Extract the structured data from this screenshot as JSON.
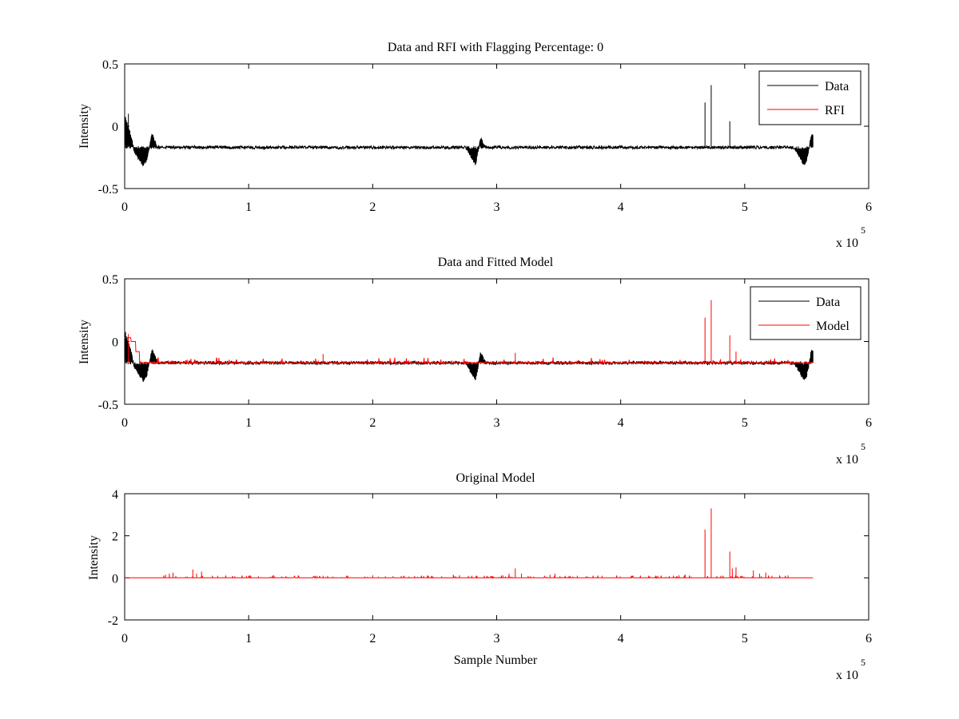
{
  "colors": {
    "data": "#000000",
    "rfi": "#ff0000",
    "model": "#ff0000",
    "axes": "#000000",
    "background": "#ffffff"
  },
  "chart_data": [
    {
      "type": "line",
      "title": "Data and RFI with Flagging Percentage: 0",
      "xlabel": "",
      "ylabel": "Intensity",
      "xlim": [
        0,
        600000
      ],
      "ylim": [
        -0.5,
        0.5
      ],
      "x_ticks": [
        0,
        1,
        2,
        3,
        4,
        5,
        6
      ],
      "x_tick_labels": [
        "0",
        "1",
        "2",
        "3",
        "4",
        "5",
        "6"
      ],
      "y_ticks": [
        -0.5,
        0,
        0.5
      ],
      "y_tick_labels": [
        "-0.5",
        "0",
        "0.5"
      ],
      "x_exponent_label": "x 10",
      "x_exponent_power": "5",
      "grid": false,
      "legend": "top-right",
      "legend_entries": [
        "Data",
        "RFI"
      ],
      "series": [
        {
          "name": "Data",
          "color": "#000000",
          "baseline": -0.17,
          "noise": 0.012,
          "x_end": 555000,
          "dips": [
            [
              0,
              0.08,
              8000,
              "rise"
            ],
            [
              15000,
              -0.31,
              10000,
              "dip"
            ],
            [
              22000,
              -0.02,
              4000,
              "rise"
            ],
            [
              283000,
              -0.31,
              8000,
              "dip"
            ],
            [
              287000,
              -0.02,
              4000,
              "rise"
            ],
            [
              548000,
              -0.31,
              8000,
              "dip"
            ],
            [
              554000,
              -0.03,
              4000,
              "rise"
            ]
          ],
          "spikes": [
            [
              468000,
              0.19
            ],
            [
              473000,
              0.33
            ],
            [
              488000,
              0.04
            ],
            [
              3000,
              0.1
            ]
          ]
        },
        {
          "name": "RFI",
          "color": "#ff0000",
          "points": []
        }
      ]
    },
    {
      "type": "line",
      "title": "Data and Fitted Model",
      "xlabel": "",
      "ylabel": "Intensity",
      "xlim": [
        0,
        600000
      ],
      "ylim": [
        -0.5,
        0.5
      ],
      "x_ticks": [
        0,
        1,
        2,
        3,
        4,
        5,
        6
      ],
      "x_tick_labels": [
        "0",
        "1",
        "2",
        "3",
        "4",
        "5",
        "6"
      ],
      "y_ticks": [
        -0.5,
        0,
        0.5
      ],
      "y_tick_labels": [
        "-0.5",
        "0",
        "0.5"
      ],
      "x_exponent_label": "x 10",
      "x_exponent_power": "5",
      "grid": false,
      "legend": "top-right",
      "legend_entries": [
        "Data",
        "Model"
      ],
      "series": [
        {
          "name": "Data",
          "color": "#000000",
          "baseline": -0.17,
          "noise": 0.012,
          "x_end": 555000,
          "dips": [
            [
              0,
              0.08,
              8000,
              "rise"
            ],
            [
              15000,
              -0.31,
              10000,
              "dip"
            ],
            [
              22000,
              -0.02,
              4000,
              "rise"
            ],
            [
              283000,
              -0.31,
              8000,
              "dip"
            ],
            [
              287000,
              -0.02,
              4000,
              "rise"
            ],
            [
              548000,
              -0.31,
              8000,
              "dip"
            ],
            [
              554000,
              -0.03,
              4000,
              "rise"
            ]
          ],
          "spikes": []
        },
        {
          "name": "Model",
          "color": "#ff0000",
          "baseline": -0.17,
          "x_end": 555000,
          "steps": [
            [
              0,
              0.03
            ],
            [
              5000,
              0.0
            ],
            [
              9000,
              -0.08
            ],
            [
              12000,
              -0.17
            ]
          ],
          "spikes": [
            [
              468000,
              0.19
            ],
            [
              473000,
              0.33
            ],
            [
              488000,
              0.05
            ],
            [
              493000,
              -0.08
            ],
            [
              3000,
              0.06
            ],
            [
              160000,
              -0.1
            ],
            [
              315000,
              -0.09
            ]
          ]
        }
      ]
    },
    {
      "type": "line",
      "title": "Original Model",
      "xlabel": "Sample Number",
      "ylabel": "Intensity",
      "xlim": [
        0,
        600000
      ],
      "ylim": [
        -2,
        4
      ],
      "x_ticks": [
        0,
        1,
        2,
        3,
        4,
        5,
        6
      ],
      "x_tick_labels": [
        "0",
        "1",
        "2",
        "3",
        "4",
        "5",
        "6"
      ],
      "y_ticks": [
        -2,
        0,
        2,
        4
      ],
      "y_tick_labels": [
        "-2",
        "0",
        "2",
        "4"
      ],
      "x_exponent_label": "x 10",
      "x_exponent_power": "5",
      "grid": false,
      "legend": "none",
      "series": [
        {
          "name": "",
          "color": "#ff0000",
          "baseline": 0,
          "x_end": 555000,
          "spikes": [
            [
              33000,
              0.15
            ],
            [
              36000,
              0.2
            ],
            [
              39000,
              0.25
            ],
            [
              55000,
              0.4
            ],
            [
              58000,
              0.2
            ],
            [
              62000,
              0.3
            ],
            [
              75000,
              0.1
            ],
            [
              100000,
              0.1
            ],
            [
              120000,
              0.12
            ],
            [
              140000,
              0.12
            ],
            [
              160000,
              0.1
            ],
            [
              180000,
              0.1
            ],
            [
              200000,
              0.12
            ],
            [
              225000,
              0.1
            ],
            [
              245000,
              0.1
            ],
            [
              265000,
              0.15
            ],
            [
              270000,
              0.12
            ],
            [
              305000,
              0.12
            ],
            [
              310000,
              0.2
            ],
            [
              315000,
              0.45
            ],
            [
              320000,
              0.2
            ],
            [
              343000,
              0.15
            ],
            [
              347000,
              0.2
            ],
            [
              365000,
              0.1
            ],
            [
              385000,
              0.1
            ],
            [
              410000,
              0.1
            ],
            [
              430000,
              0.1
            ],
            [
              447000,
              0.12
            ],
            [
              452000,
              0.15
            ],
            [
              468000,
              2.3
            ],
            [
              473000,
              3.3
            ],
            [
              488000,
              1.25
            ],
            [
              490000,
              0.45
            ],
            [
              493000,
              0.5
            ],
            [
              507000,
              0.35
            ],
            [
              512000,
              0.2
            ],
            [
              517000,
              0.25
            ],
            [
              522000,
              0.1
            ],
            [
              535000,
              0.12
            ]
          ]
        }
      ]
    }
  ]
}
